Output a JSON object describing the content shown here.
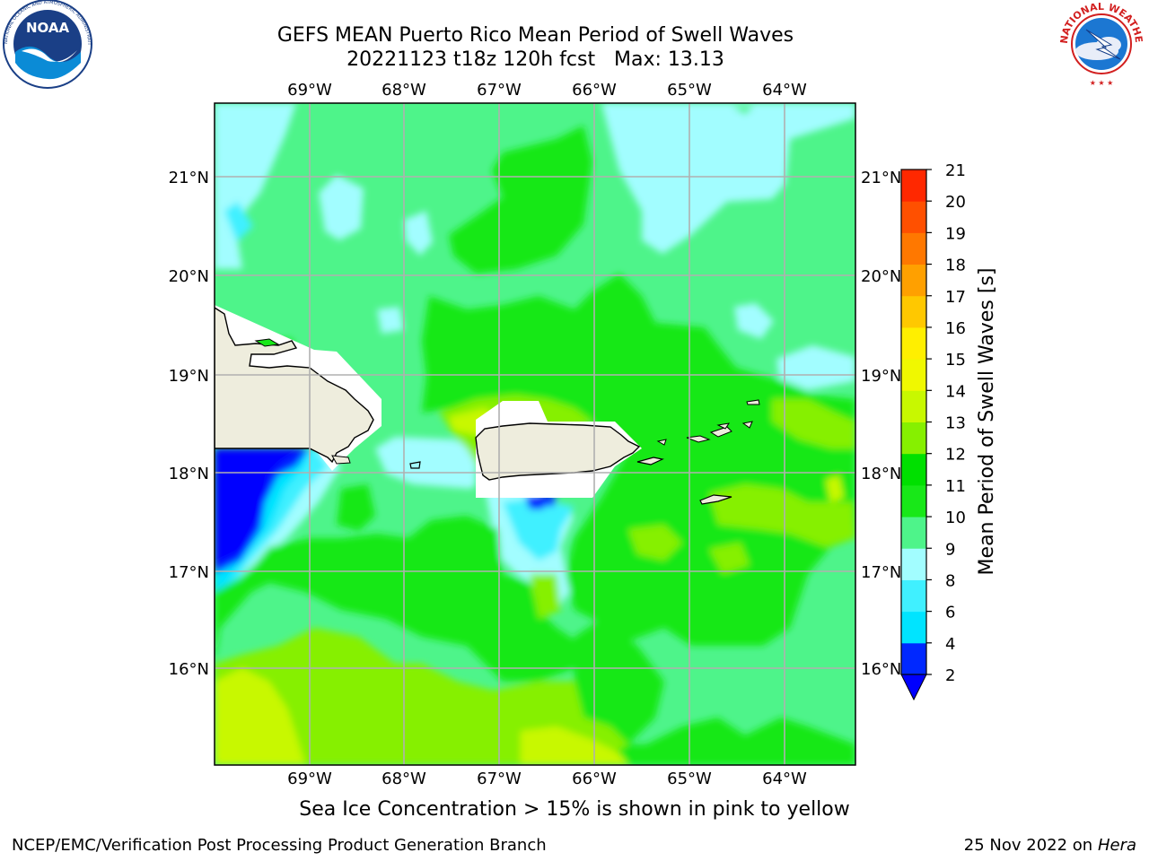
{
  "header": {
    "title_line1": "GEFS MEAN Puerto Rico Mean Period of Swell Waves",
    "title_line2": "20221123 t18z 120h fcst   Max: 13.13"
  },
  "logos": {
    "left": "NOAA",
    "left_ring_text": "NATIONAL OCEANIC AND ATMOSPHERIC ADMINISTRATION · U.S. DEPARTMENT OF COMMERCE",
    "right_ring_text": "NATIONAL WEATHER SERVICE"
  },
  "map": {
    "lon_labels": [
      "69°W",
      "68°W",
      "67°W",
      "66°W",
      "65°W",
      "64°W"
    ],
    "lat_labels": [
      "21°N",
      "20°N",
      "19°N",
      "18°N",
      "17°N",
      "16°N"
    ],
    "extent": {
      "lon_min": -70.0,
      "lon_max": -63.25,
      "lat_min": 15.0,
      "lat_max": 21.75
    },
    "grid": true,
    "land_color": "#eeeddd",
    "masked_color": "#ffffff"
  },
  "colorbar": {
    "label": "Mean Period of Swell Waves [s]",
    "ticks": [
      "21",
      "20",
      "19",
      "18",
      "17",
      "16",
      "15",
      "14",
      "13",
      "12",
      "11",
      "10",
      "9",
      "8",
      "6",
      "4",
      "2"
    ],
    "levels": [
      2,
      4,
      6,
      8,
      9,
      10,
      11,
      12,
      13,
      14,
      15,
      16,
      17,
      18,
      19,
      20,
      21
    ],
    "colors": [
      "#0028ff",
      "#00e4ff",
      "#40f0ff",
      "#a2fdff",
      "#4ef48a",
      "#18e818",
      "#00e000",
      "#86f000",
      "#c8f800",
      "#f0f800",
      "#ffef00",
      "#ffc800",
      "#ffa000",
      "#ff7800",
      "#ff5000",
      "#ff2800"
    ],
    "under_color": "#0000ff"
  },
  "note": "Sea Ice Concentration > 15% is shown in pink to yellow",
  "footer": {
    "left": "NCEP/EMC/Verification Post Processing Product Generation Branch",
    "date": "25 Nov 2022 on",
    "host": "Hera"
  }
}
